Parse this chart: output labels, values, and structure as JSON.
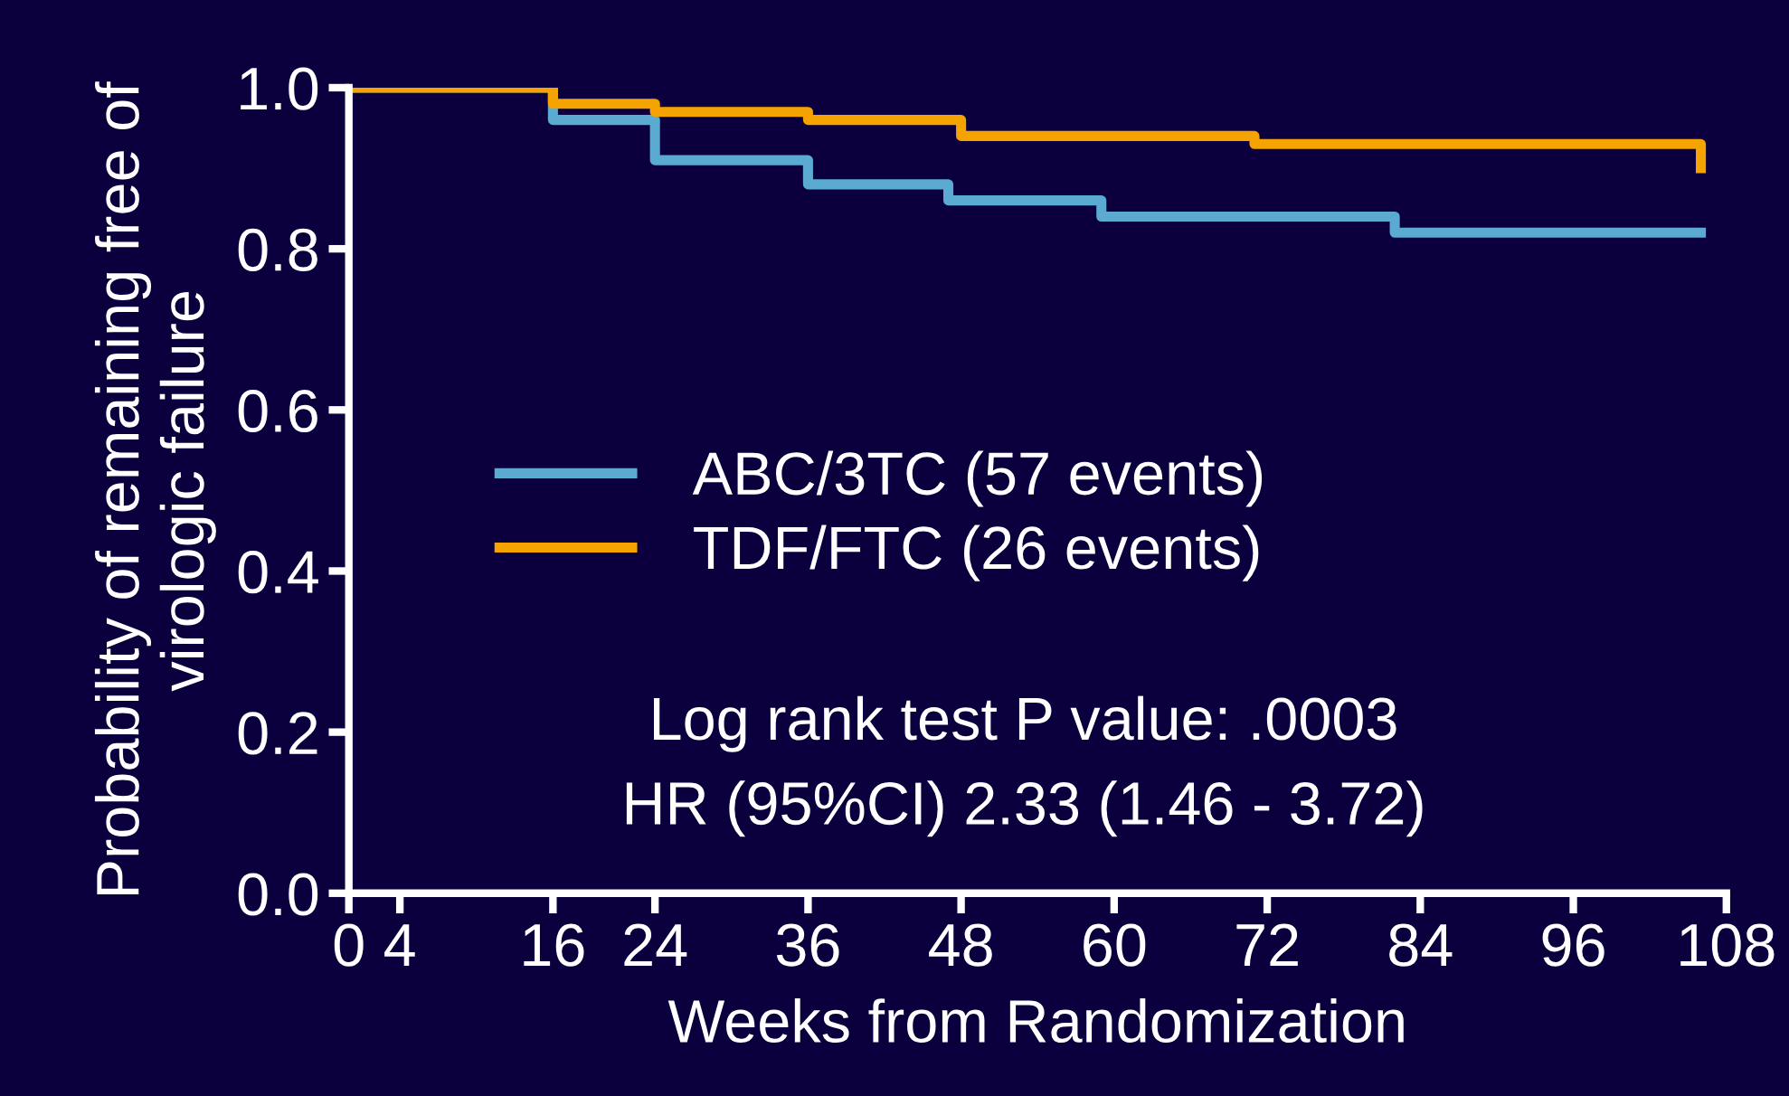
{
  "chart_data": {
    "type": "step",
    "xlabel": "Weeks from Randomization",
    "ylabel": "Probability of remaining free of\nvirologic failure",
    "xlim": [
      0,
      108
    ],
    "ylim": [
      0,
      1.0
    ],
    "xticks": [
      0,
      4,
      16,
      24,
      36,
      48,
      60,
      72,
      84,
      96,
      108
    ],
    "yticks": [
      {
        "value": 0,
        "label": "0.0"
      },
      {
        "value": 0.2,
        "label": "0.2"
      },
      {
        "value": 0.4,
        "label": "0.4"
      },
      {
        "value": 0.6,
        "label": "0.6"
      },
      {
        "value": 0.8,
        "label": "0.8"
      },
      {
        "value": 1.0,
        "label": "1.0"
      }
    ],
    "series": [
      {
        "name": "ABC/3TC (57 events)",
        "color": "#5aaad2",
        "x": [
          0,
          16,
          24,
          36,
          47,
          59,
          82,
          106
        ],
        "values": [
          1.0,
          0.96,
          0.91,
          0.88,
          0.86,
          0.84,
          0.82,
          0.82
        ]
      },
      {
        "name": "TDF/FTC (26 events)",
        "color": "#f5a300",
        "x": [
          0,
          16,
          24,
          36,
          48,
          71,
          106
        ],
        "values": [
          1.0,
          0.98,
          0.97,
          0.96,
          0.94,
          0.93,
          0.9
        ]
      }
    ],
    "annotations": [
      "Log rank test P value: .0003",
      "HR (95%CI) 2.33 (1.46 - 3.72)"
    ],
    "legend": "left",
    "grid": false,
    "line_style": "solid",
    "marker": "none"
  }
}
